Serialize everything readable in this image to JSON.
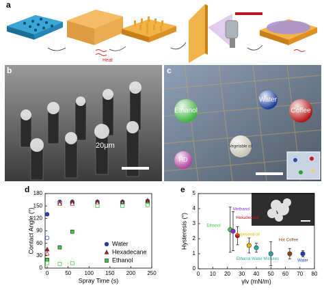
{
  "panel_labels": [
    "a",
    "b",
    "c",
    "d",
    "e"
  ],
  "diagram": {
    "heat_label": "Heat"
  },
  "sem": {
    "scale_label": "20μm"
  },
  "photo": {
    "droplets": [
      "Water",
      "Ethanol",
      "Coffee",
      "HD",
      "Vegetable oil"
    ]
  },
  "chart_data": [
    {
      "type": "scatter",
      "xlabel": "Spray Time (s)",
      "ylabel": "Contact Angle (°)",
      "x": [
        0,
        30,
        60,
        120,
        180,
        240
      ],
      "xlim": [
        -5,
        250
      ],
      "xticks": [
        0,
        50,
        100,
        150,
        200,
        250
      ],
      "ylim": [
        0,
        180
      ],
      "yticks": [
        0,
        30,
        60,
        90,
        120,
        150,
        180
      ],
      "legend": "lower right",
      "series": [
        {
          "name": "Water",
          "color": "#1f3fbf",
          "marker": "circle",
          "values": [
            130,
            160,
            160,
            160,
            160,
            162
          ],
          "receding": [
            73,
            158,
            157,
            158,
            158,
            158
          ]
        },
        {
          "name": "Hexadecane",
          "color": "#c0141c",
          "marker": "triangle",
          "values": [
            45,
            158,
            160,
            160,
            160,
            163
          ],
          "receding": [
            35,
            155,
            155,
            156,
            156,
            157
          ]
        },
        {
          "name": "Ethanol",
          "color": "#3cc83c",
          "marker": "square",
          "values": [
            20,
            50,
            88,
            150,
            152,
            155
          ],
          "receding": [
            12,
            10,
            12,
            150,
            150,
            152
          ]
        }
      ]
    },
    {
      "type": "errorbar",
      "xlabel": "γlv (mN/m)",
      "ylabel": "Hysteresis (°)",
      "xlim": [
        0,
        80
      ],
      "xticks": [
        0,
        10,
        20,
        30,
        40,
        50,
        60,
        70,
        80
      ],
      "ylim": [
        0,
        5
      ],
      "yticks": [
        0,
        1,
        2,
        3,
        4,
        5
      ],
      "series": [
        {
          "name": "Ethanol",
          "color": "#3cc83c",
          "x": [
            22
          ],
          "values": [
            2.6
          ],
          "errors": [
            1.5
          ]
        },
        {
          "name": "Methanol",
          "color": "#8a2be2",
          "x": [
            24
          ],
          "values": [
            2.5
          ],
          "errors": [
            1.3
          ]
        },
        {
          "name": "Hexadecane",
          "color": "#c0141c",
          "x": [
            27
          ],
          "values": [
            2.2
          ],
          "errors": [
            0.6
          ]
        },
        {
          "name": "Rapeseed oil",
          "color": "#f0b400",
          "x": [
            35
          ],
          "values": [
            1.55
          ],
          "errors": [
            0.5
          ]
        },
        {
          "name": "Ethanol Water Mixtures",
          "color": "#2aa6a6",
          "x": [
            40,
            50
          ],
          "values": [
            1.4,
            1.0
          ],
          "errors": [
            0.3,
            0.8
          ]
        },
        {
          "name": "Hot Coffee",
          "color": "#8b4513",
          "x": [
            63
          ],
          "values": [
            1.0
          ],
          "errors": [
            0.35
          ]
        },
        {
          "name": "Water",
          "color": "#1f3fbf",
          "x": [
            72
          ],
          "values": [
            1.0
          ],
          "errors": [
            0.2
          ]
        }
      ]
    }
  ]
}
